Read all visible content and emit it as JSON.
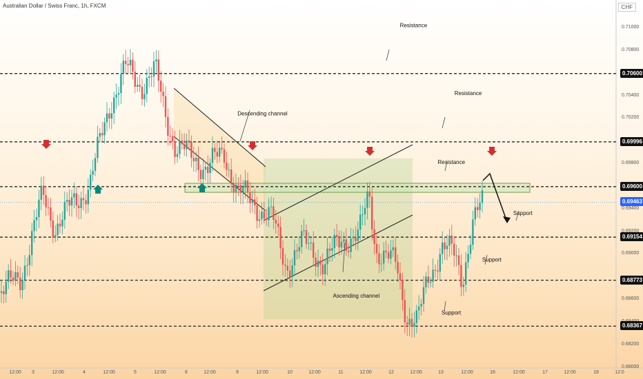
{
  "header": {
    "title": "Australian Dollar / Swiss Franc, 1h, FXCM",
    "currency": "CHF"
  },
  "chart_data": {
    "type": "candlestick",
    "ylim": [
      0.679,
      0.7125
    ],
    "price_ticks": [
      "0.71000",
      "0.70800",
      "0.70400",
      "0.70200",
      "0.69800",
      "0.69400",
      "0.69200",
      "0.69000",
      "0.68600",
      "0.68400",
      "0.68200",
      "0.68000"
    ],
    "x_ticks": [
      "12:00",
      "3",
      "12:00",
      "4",
      "12:00",
      "5",
      "12:00",
      "6",
      "12:00",
      "9",
      "12:00",
      "10",
      "12:00",
      "11",
      "12:00",
      "12",
      "12:00",
      "13",
      "12:00",
      "16",
      "12:00",
      "17",
      "12:00",
      "18",
      "12:0"
    ],
    "levels": [
      {
        "label": "0.70600",
        "value": 0.706
      },
      {
        "label": "0.69996",
        "value": 0.69996
      },
      {
        "label": "0.69600",
        "value": 0.696
      },
      {
        "label": "0.69154",
        "value": 0.69154
      },
      {
        "label": "0.68773",
        "value": 0.68773
      },
      {
        "label": "0.68367",
        "value": 0.68367
      }
    ],
    "current_price": {
      "label": "0.69463",
      "value": 0.69463
    },
    "annotations": [
      {
        "text": "Resistance",
        "x": 0.6431,
        "y": 0.7101
      },
      {
        "text": "Resistance",
        "x": 0.7281,
        "y": 0.7041
      },
      {
        "text": "Resistance",
        "x": 0.702,
        "y": 0.698
      },
      {
        "text": "Descending channel",
        "x": 0.4082,
        "y": 0.7023
      },
      {
        "text": "Support",
        "x": 0.8132,
        "y": 0.6935
      },
      {
        "text": "Support",
        "x": 0.7649,
        "y": 0.6894
      },
      {
        "text": "Support",
        "x": 0.7018,
        "y": 0.6847
      },
      {
        "text": "Ascending channel",
        "x": 0.5541,
        "y": 0.6862
      }
    ],
    "colors": {
      "up": "#26a69a",
      "down": "#ef5350",
      "arrow_down": "#d32f2f",
      "arrow_up": "#00897b"
    }
  }
}
